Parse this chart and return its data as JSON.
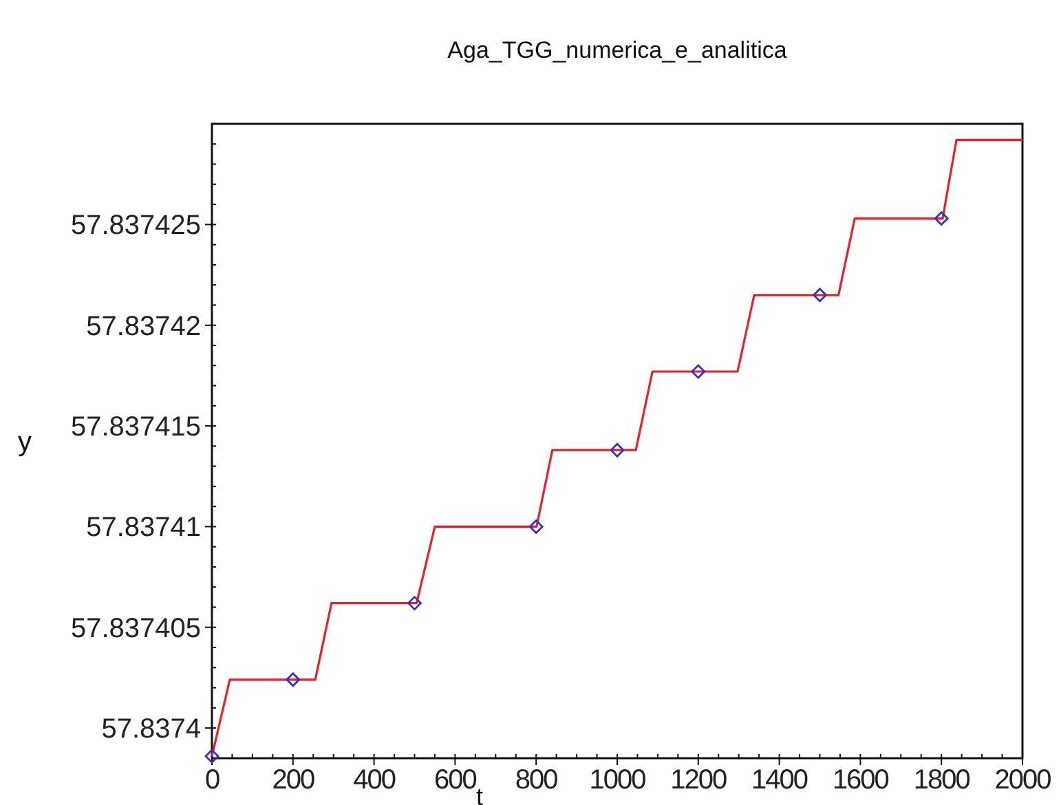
{
  "chart_data": {
    "type": "line",
    "title": "Aga_TGG_numerica_e_analitica",
    "xlabel": "t",
    "ylabel": "y",
    "xlim": [
      0,
      2000
    ],
    "xticks": [
      0,
      200,
      400,
      600,
      800,
      1000,
      1200,
      1400,
      1600,
      1800,
      2000
    ],
    "ylim": [
      57.8373985,
      57.83743
    ],
    "yticks": [
      57.8374,
      57.837405,
      57.83741,
      57.837415,
      57.83742,
      57.837425
    ],
    "grid": false,
    "series": [
      {
        "color": "#e8202a",
        "marker": "none",
        "line_style": "solid",
        "x": [
          0,
          44,
          255,
          295,
          505,
          550,
          801,
          840,
          1046,
          1087,
          1297,
          1338,
          1546,
          1586,
          1803,
          1837,
          2000
        ],
        "values": [
          57.8373986,
          57.8374024,
          57.8374024,
          57.8374062,
          57.8374062,
          57.83741,
          57.83741,
          57.8374138,
          57.8374138,
          57.8374177,
          57.8374177,
          57.8374215,
          57.8374215,
          57.8374253,
          57.8374253,
          57.8374292,
          57.8374292
        ]
      },
      {
        "type": "scatter",
        "color": "#3a2fc0",
        "marker": "diamond",
        "x": [
          0,
          200,
          500,
          800,
          1000,
          1200,
          1500,
          1800
        ],
        "values": [
          57.8373986,
          57.8374024,
          57.8374062,
          57.83741,
          57.8374138,
          57.8374177,
          57.8374215,
          57.8374253
        ]
      }
    ]
  }
}
